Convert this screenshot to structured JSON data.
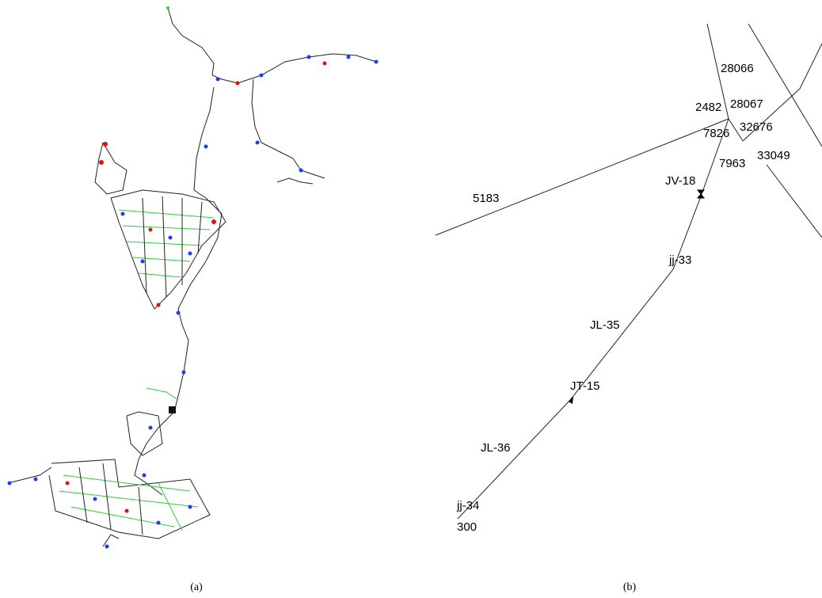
{
  "panels": [
    {
      "caption": "(a)"
    },
    {
      "caption": "(b)",
      "labels": [
        "28066",
        "2482",
        "28067",
        "7826",
        "32676",
        "7963",
        "33049",
        "JV-18",
        "5183",
        "jj-33",
        "JL-35",
        "JT-15",
        "JL-36",
        "jj-34",
        "300"
      ]
    }
  ]
}
